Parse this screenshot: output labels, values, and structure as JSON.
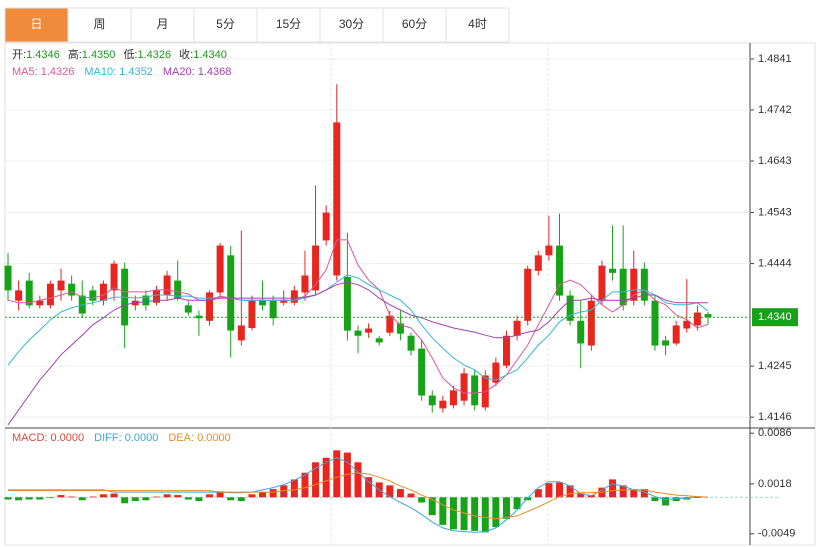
{
  "tabs": {
    "labels": [
      "日",
      "周",
      "月",
      "5分",
      "15分",
      "30分",
      "60分",
      "4时"
    ],
    "active": 0,
    "active_color": "#f08a3c"
  },
  "chart_data": [
    {
      "type": "candlestick",
      "legend_ohlc": [
        {
          "label": "开:",
          "text": "1.4346"
        },
        {
          "label": "高:",
          "text": "1.4350"
        },
        {
          "label": "低:",
          "text": "1.4326"
        },
        {
          "label": "收:",
          "text": "1.4340"
        }
      ],
      "legend_label_color": "#333333",
      "legend_value_color": "#1a9a1a",
      "up_color": "#e8251f",
      "down_color": "#17a317",
      "open": [
        1.444,
        1.4372,
        1.4411,
        1.4363,
        1.4363,
        1.4392,
        1.4405,
        1.4382,
        1.4392,
        1.4372,
        1.4392,
        1.4434,
        1.4363,
        1.4382,
        1.4368,
        1.4382,
        1.4411,
        1.4363,
        1.4343,
        1.4333,
        1.4388,
        1.446,
        1.4295,
        1.4319,
        1.4374,
        1.4372,
        1.4368,
        1.4368,
        1.4388,
        1.4392,
        1.4489,
        1.4421,
        1.4418,
        1.4314,
        1.431,
        1.4299,
        1.431,
        1.4328,
        1.4304,
        1.4279,
        1.4188,
        1.4163,
        1.4169,
        1.4178,
        1.4227,
        1.4165,
        1.4213,
        1.4246,
        1.4304,
        1.4333,
        1.443,
        1.446,
        1.4479,
        1.4382,
        1.4333,
        1.4285,
        1.4372,
        1.4434,
        1.4434,
        1.4372,
        1.4434,
        1.4372,
        1.4295,
        1.4289,
        1.4318,
        1.4324,
        1.4346
      ],
      "high": [
        1.4465,
        1.4411,
        1.4426,
        1.4382,
        1.4411,
        1.4434,
        1.4421,
        1.4411,
        1.4401,
        1.4411,
        1.445,
        1.4446,
        1.4382,
        1.4392,
        1.4401,
        1.443,
        1.445,
        1.4372,
        1.4353,
        1.4392,
        1.4484,
        1.4479,
        1.4508,
        1.4382,
        1.4411,
        1.4382,
        1.4392,
        1.4401,
        1.4469,
        1.4596,
        1.4557,
        1.4792,
        1.4504,
        1.4324,
        1.4328,
        1.4304,
        1.4353,
        1.4353,
        1.431,
        1.4295,
        1.4198,
        1.4188,
        1.4207,
        1.4241,
        1.4237,
        1.4237,
        1.4262,
        1.4314,
        1.4343,
        1.444,
        1.4469,
        1.4537,
        1.4541,
        1.4392,
        1.4372,
        1.4382,
        1.445,
        1.4518,
        1.4518,
        1.4469,
        1.4446,
        1.4382,
        1.4304,
        1.4333,
        1.4414,
        1.4363,
        1.435
      ],
      "low": [
        1.4372,
        1.4353,
        1.4357,
        1.4357,
        1.4357,
        1.4372,
        1.4372,
        1.4338,
        1.4363,
        1.4363,
        1.4372,
        1.428,
        1.4353,
        1.4353,
        1.4363,
        1.4372,
        1.4372,
        1.4343,
        1.4304,
        1.4324,
        1.4382,
        1.4262,
        1.4285,
        1.4314,
        1.4353,
        1.4324,
        1.4363,
        1.4363,
        1.4372,
        1.4382,
        1.4479,
        1.4411,
        1.4295,
        1.427,
        1.43,
        1.4285,
        1.4304,
        1.4295,
        1.4266,
        1.4178,
        1.4155,
        1.4155,
        1.4163,
        1.4169,
        1.4159,
        1.4159,
        1.4207,
        1.4241,
        1.4295,
        1.4324,
        1.4421,
        1.445,
        1.4372,
        1.4324,
        1.4241,
        1.4275,
        1.4363,
        1.4411,
        1.4353,
        1.4363,
        1.4363,
        1.4275,
        1.4266,
        1.4285,
        1.431,
        1.4314,
        1.4326
      ],
      "close": [
        1.4392,
        1.4392,
        1.4363,
        1.4372,
        1.4405,
        1.4411,
        1.4382,
        1.4347,
        1.4372,
        1.4405,
        1.4444,
        1.4324,
        1.4372,
        1.4363,
        1.4392,
        1.4421,
        1.4376,
        1.4349,
        1.4338,
        1.4388,
        1.4479,
        1.4314,
        1.4324,
        1.4372,
        1.4363,
        1.4338,
        1.4374,
        1.4392,
        1.4421,
        1.4479,
        1.4543,
        1.4718,
        1.4314,
        1.4304,
        1.4318,
        1.4291,
        1.4343,
        1.4308,
        1.4275,
        1.4188,
        1.4169,
        1.4178,
        1.4198,
        1.4231,
        1.4169,
        1.4227,
        1.4252,
        1.4304,
        1.4333,
        1.4434,
        1.446,
        1.4479,
        1.4382,
        1.4333,
        1.4289,
        1.4372,
        1.444,
        1.4426,
        1.4363,
        1.4434,
        1.4372,
        1.4285,
        1.4285,
        1.4324,
        1.4333,
        1.4349,
        1.434
      ],
      "series": [
        {
          "name": "MA5: 1.4326",
          "color": "#e0559a",
          "values": [
            1.4373,
            1.4368,
            1.4368,
            1.4373,
            1.4377,
            1.4383,
            1.4389,
            1.4379,
            1.4377,
            1.4383,
            1.4397,
            1.4389,
            1.4389,
            1.4389,
            1.4393,
            1.4393,
            1.4389,
            1.4385,
            1.4373,
            1.4373,
            1.4381,
            1.4377,
            1.4373,
            1.4373,
            1.4373,
            1.4373,
            1.4373,
            1.4373,
            1.4381,
            1.4403,
            1.4432,
            1.449,
            1.449,
            1.4441,
            1.4412,
            1.4393,
            1.4344,
            1.4325,
            1.4319,
            1.4296,
            1.4261,
            1.4222,
            1.4203,
            1.4193,
            1.4193,
            1.4195,
            1.4209,
            1.4228,
            1.4257,
            1.4286,
            1.4325,
            1.4364,
            1.4403,
            1.4412,
            1.4403,
            1.4383,
            1.4364,
            1.435,
            1.4364,
            1.4383,
            1.4393,
            1.4373,
            1.4364,
            1.4344,
            1.4335,
            1.4319,
            1.4326
          ]
        },
        {
          "name": "MA10: 1.4352",
          "color": "#35b6d6",
          "values": [
            1.4247,
            1.4273,
            1.4296,
            1.4315,
            1.4335,
            1.435,
            1.4358,
            1.4364,
            1.4368,
            1.4373,
            1.4379,
            1.4379,
            1.4377,
            1.4379,
            1.4383,
            1.4383,
            1.4381,
            1.4381,
            1.4377,
            1.4377,
            1.4379,
            1.4377,
            1.4373,
            1.4373,
            1.4373,
            1.4373,
            1.4373,
            1.4373,
            1.4377,
            1.4383,
            1.4393,
            1.4408,
            1.4422,
            1.4416,
            1.4403,
            1.4393,
            1.4383,
            1.4373,
            1.4354,
            1.4325,
            1.43,
            1.428,
            1.4261,
            1.4247,
            1.4238,
            1.4222,
            1.4218,
            1.4228,
            1.4238,
            1.4261,
            1.4286,
            1.4305,
            1.4331,
            1.4344,
            1.435,
            1.4354,
            1.4373,
            1.4389,
            1.4389,
            1.4393,
            1.4393,
            1.4383,
            1.4368,
            1.4364,
            1.4364,
            1.4368,
            1.4352
          ]
        },
        {
          "name": "MA20: 1.4368",
          "color": "#a33fb0",
          "values": [
            1.4131,
            1.416,
            1.4189,
            1.4218,
            1.4242,
            1.4267,
            1.4286,
            1.4305,
            1.4325,
            1.4339,
            1.4354,
            1.4364,
            1.4368,
            1.437,
            1.4373,
            1.4373,
            1.4377,
            1.4373,
            1.4373,
            1.4373,
            1.4377,
            1.4377,
            1.4377,
            1.4377,
            1.4377,
            1.4377,
            1.4377,
            1.4377,
            1.4379,
            1.4383,
            1.4393,
            1.4403,
            1.4408,
            1.4403,
            1.4393,
            1.4377,
            1.4364,
            1.4354,
            1.4344,
            1.4339,
            1.4331,
            1.4325,
            1.4319,
            1.4315,
            1.4311,
            1.4305,
            1.43,
            1.43,
            1.4305,
            1.4311,
            1.4315,
            1.4331,
            1.4354,
            1.4373,
            1.4373,
            1.4377,
            1.4373,
            1.4373,
            1.4373,
            1.4377,
            1.4383,
            1.4383,
            1.4373,
            1.4368,
            1.4368,
            1.4368,
            1.4368
          ]
        }
      ],
      "ylim": [
        1.4125,
        1.4872
      ],
      "yticks": [
        1.4841,
        1.4742,
        1.4643,
        1.4543,
        1.4444,
        1.4245,
        1.4146
      ],
      "price_line": {
        "value": 1.434,
        "label": "1.4340",
        "color": "#18a018"
      },
      "grid": true
    },
    {
      "type": "macd",
      "up_color": "#e8251f",
      "down_color": "#17a317",
      "series": [
        {
          "name": "MACD: 0.0000",
          "color": "#d9463a",
          "values": [
            -0.0003,
            -0.0004,
            -0.0003,
            -0.0003,
            -0.0001,
            0.0003,
            0.0001,
            -0.0004,
            0.0001,
            0.0004,
            0.0005,
            -0.0008,
            -0.0005,
            -0.0004,
            0.0001,
            0.0004,
            0.0003,
            -0.0003,
            -0.0005,
            0.0004,
            0.0008,
            -0.0004,
            -0.0005,
            0.0004,
            0.0007,
            0.0011,
            0.0016,
            0.0024,
            0.0033,
            0.0047,
            0.0053,
            0.0063,
            0.006,
            0.0047,
            0.0027,
            0.002,
            0.0016,
            0.0011,
            0.0005,
            -0.0007,
            -0.0024,
            -0.0037,
            -0.0043,
            -0.0044,
            -0.0045,
            -0.0047,
            -0.004,
            -0.0029,
            -0.0016,
            -0.0004,
            0.0011,
            0.0019,
            0.002,
            0.0016,
            0.0005,
            0.0003,
            0.0013,
            0.0024,
            0.0016,
            0.0011,
            0.0011,
            -0.0005,
            -0.0011,
            -0.0005,
            -0.0003,
            -0.0001,
            0
          ]
        },
        {
          "name": "DIFF: 0.0000",
          "color": "#3aa6e0",
          "values": [
            0.001,
            0.001,
            0.001,
            0.001,
            0.001,
            0.001,
            0.001,
            0.001,
            0.001,
            0.001,
            0.0007,
            0.0007,
            0.0007,
            0.0007,
            0.0007,
            0.0007,
            0.0007,
            0.0007,
            0.0007,
            0.0007,
            0.0007,
            0.0006,
            0.0006,
            0.0007,
            0.001,
            0.0013,
            0.0017,
            0.0023,
            0.003,
            0.0039,
            0.0047,
            0.0053,
            0.0047,
            0.0034,
            0.0021,
            0.001,
            0.0001,
            -0.0007,
            -0.0014,
            -0.0023,
            -0.0033,
            -0.0041,
            -0.0045,
            -0.0046,
            -0.0047,
            -0.0046,
            -0.0041,
            -0.003,
            -0.0017,
            -0.0001,
            0.0013,
            0.0021,
            0.0021,
            0.0015,
            0.0005,
            0.0002,
            0.001,
            0.0018,
            0.0015,
            0.001,
            0.0007,
            0.0001,
            -0.0003,
            -0.0002,
            -0.0001,
            0.0001,
            0
          ]
        },
        {
          "name": "DEA: 0.0000",
          "color": "#f08a24",
          "values": [
            0.0009,
            0.0009,
            0.0009,
            0.0009,
            0.0009,
            0.0009,
            0.0009,
            0.0009,
            0.0009,
            0.0009,
            0.0009,
            0.0009,
            0.0009,
            0.0009,
            0.0009,
            0.0009,
            0.0009,
            0.0009,
            0.0009,
            0.0009,
            0.0007,
            0.0007,
            0.0007,
            0.0007,
            0.0007,
            0.0007,
            0.0009,
            0.001,
            0.0013,
            0.0017,
            0.0022,
            0.0027,
            0.0031,
            0.0033,
            0.0031,
            0.0027,
            0.0022,
            0.0015,
            0.001,
            0.0003,
            -0.0003,
            -0.001,
            -0.0017,
            -0.0021,
            -0.0025,
            -0.0027,
            -0.0029,
            -0.0027,
            -0.0025,
            -0.0019,
            -0.0013,
            -0.0006,
            0.0001,
            0.0005,
            0.0006,
            0.0006,
            0.0007,
            0.0009,
            0.001,
            0.001,
            0.001,
            0.0007,
            0.0005,
            0.0003,
            0.0002,
            0.0001,
            0
          ]
        }
      ],
      "ylim": [
        -0.0064,
        0.0093
      ],
      "yticks": [
        0.0086,
        0.0018,
        -0.0049
      ]
    }
  ]
}
